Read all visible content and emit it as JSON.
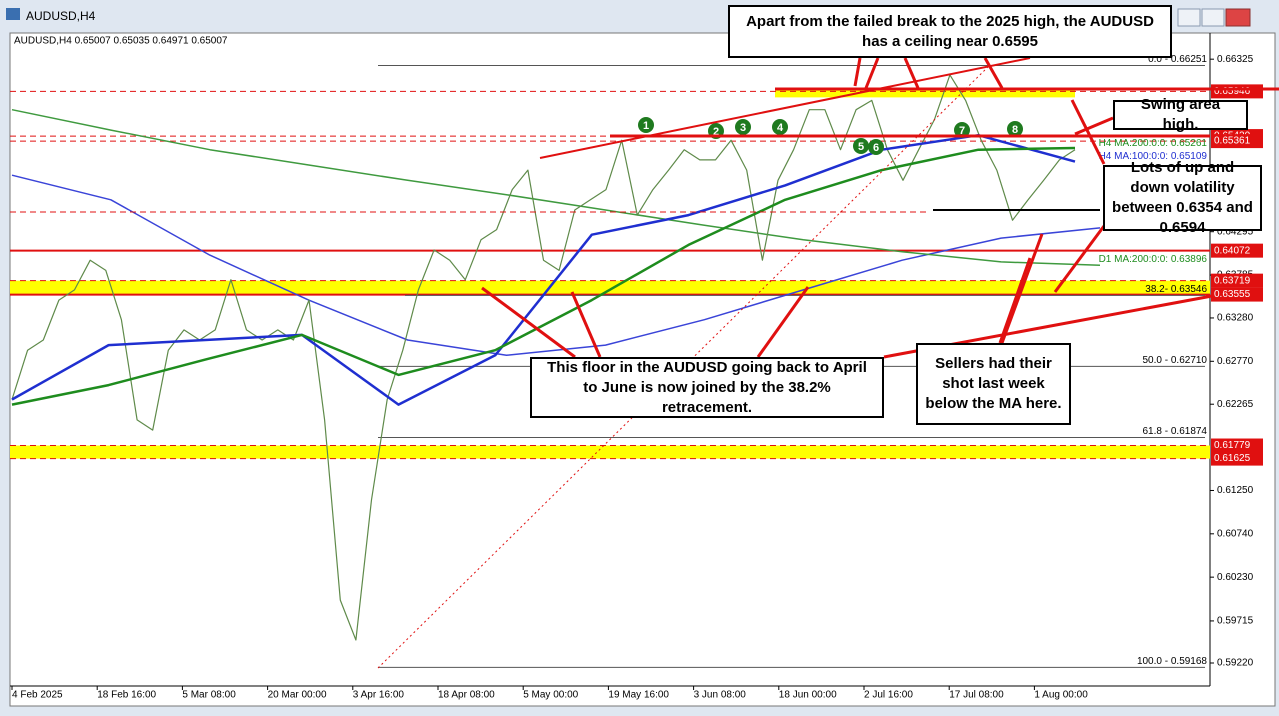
{
  "window": {
    "title": "AUDUSD,H4"
  },
  "chart": {
    "header": "AUDUSD,H4  0.65007 0.65035 0.64971 0.65007",
    "ylim": [
      0.58961,
      0.66633
    ],
    "yticks": [
      {
        "value": 0.66325,
        "label": "0.66325"
      },
      {
        "value": 0.64295,
        "label": "0.64295"
      },
      {
        "value": 0.63785,
        "label": "0.63785"
      },
      {
        "value": 0.6328,
        "label": "0.63280"
      },
      {
        "value": 0.6277,
        "label": "0.62770"
      },
      {
        "value": 0.62265,
        "label": "0.62265"
      },
      {
        "value": 0.6125,
        "label": "0.61250"
      },
      {
        "value": 0.6074,
        "label": "0.60740"
      },
      {
        "value": 0.6023,
        "label": "0.60230"
      },
      {
        "value": 0.59715,
        "label": "0.59715"
      },
      {
        "value": 0.5922,
        "label": "0.59220"
      }
    ],
    "categories": [
      "4 Feb 2025",
      "18 Feb 16:00",
      "5 Mar 08:00",
      "20 Mar 00:00",
      "3 Apr 16:00",
      "18 Apr 08:00",
      "5 May 00:00",
      "19 May 16:00",
      "3 Jun 08:00",
      "18 Jun 00:00",
      "2 Jul 16:00",
      "17 Jul 08:00",
      "1 Aug 00:00"
    ],
    "price": {
      "color": "#5f8a4a",
      "values": [
        0.6232,
        0.629,
        0.6302,
        0.6349,
        0.6361,
        0.6396,
        0.6384,
        0.6326,
        0.6208,
        0.6196,
        0.629,
        0.6314,
        0.6302,
        0.6314,
        0.6373,
        0.6314,
        0.6302,
        0.6314,
        0.6302,
        0.6349,
        0.6208,
        0.5996,
        0.5949,
        0.6114,
        0.6232,
        0.629,
        0.6361,
        0.6408,
        0.6396,
        0.6373,
        0.642,
        0.6432,
        0.6479,
        0.6502,
        0.6396,
        0.6384,
        0.6455,
        0.6467,
        0.6479,
        0.6537,
        0.6449,
        0.6479,
        0.6502,
        0.6526,
        0.6514,
        0.6514,
        0.6537,
        0.6502,
        0.6396,
        0.649,
        0.6526,
        0.6573,
        0.6573,
        0.6526,
        0.6573,
        0.6584,
        0.6526,
        0.649,
        0.6526,
        0.6561,
        0.6614,
        0.6584,
        0.6537,
        0.6502,
        0.6443,
        0.6467,
        0.649,
        0.6514,
        0.6526
      ]
    },
    "moving_averages": [
      {
        "color": "#1f2fd0",
        "values": [
          0.6232,
          0.6296,
          0.6302,
          0.6308,
          0.6226,
          0.6284,
          0.6426,
          0.6449,
          0.6484,
          0.6526,
          0.6543,
          0.6512
        ]
      },
      {
        "color": "#1e8c1e",
        "values": [
          0.6226,
          0.6249,
          0.6279,
          0.6308,
          0.6261,
          0.629,
          0.6349,
          0.6414,
          0.6467,
          0.6502,
          0.6526,
          0.6528
        ]
      },
      {
        "color": "#3a44d8",
        "values": [
          0.6496,
          0.6467,
          0.6402,
          0.6349,
          0.6302,
          0.6284,
          0.6296,
          0.6326,
          0.6361,
          0.6396,
          0.6422,
          0.6434
        ]
      },
      {
        "color": "#3f9a3f",
        "values": [
          0.6573,
          0.6549,
          0.6526,
          0.6508,
          0.649,
          0.6473,
          0.6455,
          0.6437,
          0.642,
          0.6406,
          0.6394,
          0.639
        ]
      }
    ],
    "indicator_labels": [
      {
        "value": 0.65261,
        "label": "H4 MA:200:0:0: 0.65261"
      },
      {
        "value": 0.65109,
        "label": "H4 MA:100:0:0: 0.65109"
      },
      {
        "value": 0.63896,
        "label": "D1 MA:200:0:0: 0.63896"
      }
    ],
    "fib_levels": [
      {
        "value": 0.66251,
        "label": "0.0 - 0.66251"
      },
      {
        "value": 0.63546,
        "label": "38.2- 0.63546"
      },
      {
        "value": 0.6271,
        "label": "50.0 - 0.62710"
      },
      {
        "value": 0.61874,
        "label": "61.8 - 0.61874"
      },
      {
        "value": 0.59168,
        "label": "100.0 - 0.59168"
      }
    ],
    "price_tags": [
      0.65946,
      {
        "value": 0.6542,
        "label": "0.65420"
      },
      0.65361,
      0.64072,
      0.63719,
      0.63555,
      0.61779,
      0.61625
    ],
    "swing_markers": [
      "1",
      "2",
      "3",
      "4",
      "5",
      "6",
      "7",
      "8"
    ],
    "annotations": [
      "Apart from the failed break to the 2025 high, the AUDUSD has a ceiling near 0.6595",
      "Swing area high.",
      "Lots of up and down volatility between 0.6354 and 0.6594",
      "This floor in the AUDUSD going back to April to June  is now joined by the 38.2% retracement.",
      "Sellers had their shot last week below the MA here."
    ]
  }
}
